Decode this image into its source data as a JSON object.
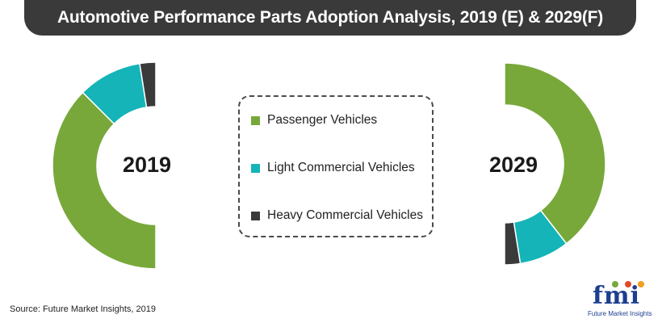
{
  "title": "Automotive Performance Parts Adoption Analysis, 2019 (E) & 2029(F)",
  "source": "Source: Future Market Insights, 2019",
  "logo": {
    "letters": "fmi",
    "text": "Future Market Insights"
  },
  "colors": {
    "title_bar": "#3a3a3a",
    "passenger": "#78a83a",
    "light": "#14b4b8",
    "heavy": "#3a3a3a"
  },
  "chart_data": [
    {
      "type": "pie",
      "subtype": "semi-donut",
      "center_label": "2019",
      "categories": [
        "Passenger Vehicles",
        "Light Commercial Vehicles",
        "Heavy Commercial Vehicles"
      ],
      "values": [
        75,
        20,
        5
      ],
      "colors": [
        "#78a83a",
        "#14b4b8",
        "#3a3a3a"
      ],
      "orientation": "left-half"
    },
    {
      "type": "pie",
      "subtype": "semi-donut",
      "center_label": "2029",
      "categories": [
        "Passenger Vehicles",
        "Light Commercial Vehicles",
        "Heavy Commercial Vehicles"
      ],
      "values": [
        79,
        16,
        5
      ],
      "colors": [
        "#78a83a",
        "#14b4b8",
        "#3a3a3a"
      ],
      "orientation": "right-half"
    }
  ],
  "legend": {
    "items": [
      {
        "label": "Passenger Vehicles",
        "color": "#78a83a"
      },
      {
        "label": "Light Commercial Vehicles",
        "color": "#14b4b8"
      },
      {
        "label": "Heavy Commercial Vehicles",
        "color": "#3a3a3a"
      }
    ]
  }
}
